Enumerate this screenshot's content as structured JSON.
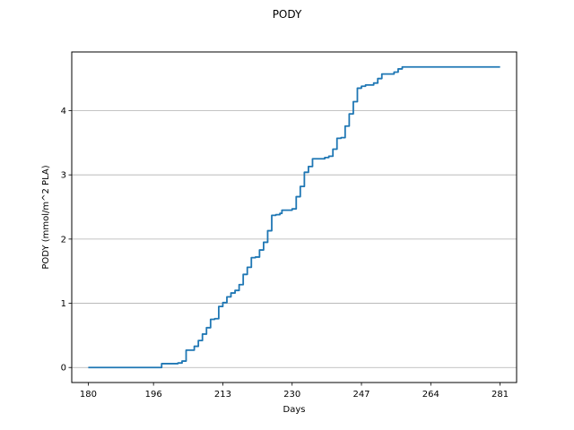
{
  "chart_data": {
    "type": "line",
    "title": "PODY",
    "xlabel": "Days",
    "ylabel": "PODY (mmol/m^2 PLA)",
    "xlim": [
      175.95,
      285.05
    ],
    "ylim": [
      -0.234,
      4.914
    ],
    "x_ticks": [
      180,
      196,
      213,
      230,
      247,
      264,
      281
    ],
    "y_ticks": [
      0,
      1,
      2,
      3,
      4
    ],
    "grid": "horizontal",
    "series": [
      {
        "name": "",
        "color": "#1f77b4",
        "step": true,
        "points": [
          [
            180,
            0.0
          ],
          [
            197,
            0.0
          ],
          [
            198,
            0.06
          ],
          [
            202,
            0.07
          ],
          [
            203,
            0.1
          ],
          [
            204,
            0.27
          ],
          [
            206,
            0.33
          ],
          [
            207,
            0.42
          ],
          [
            208,
            0.52
          ],
          [
            209,
            0.62
          ],
          [
            210,
            0.75
          ],
          [
            211,
            0.76
          ],
          [
            212,
            0.95
          ],
          [
            213,
            1.01
          ],
          [
            214,
            1.1
          ],
          [
            215,
            1.16
          ],
          [
            216,
            1.2
          ],
          [
            217,
            1.29
          ],
          [
            218,
            1.45
          ],
          [
            219,
            1.56
          ],
          [
            220,
            1.71
          ],
          [
            221,
            1.72
          ],
          [
            222,
            1.83
          ],
          [
            223,
            1.95
          ],
          [
            224,
            2.13
          ],
          [
            225,
            2.37
          ],
          [
            226,
            2.38
          ],
          [
            227,
            2.4
          ],
          [
            227.5,
            2.45
          ],
          [
            230,
            2.47
          ],
          [
            231,
            2.66
          ],
          [
            232,
            2.82
          ],
          [
            233,
            3.04
          ],
          [
            234,
            3.13
          ],
          [
            235,
            3.25
          ],
          [
            238,
            3.27
          ],
          [
            239,
            3.29
          ],
          [
            240,
            3.4
          ],
          [
            241,
            3.57
          ],
          [
            242,
            3.58
          ],
          [
            243,
            3.76
          ],
          [
            244,
            3.95
          ],
          [
            245,
            4.14
          ],
          [
            246,
            4.35
          ],
          [
            247,
            4.38
          ],
          [
            248,
            4.4
          ],
          [
            250,
            4.43
          ],
          [
            251,
            4.5
          ],
          [
            252,
            4.57
          ],
          [
            255,
            4.6
          ],
          [
            256,
            4.65
          ],
          [
            257,
            4.68
          ],
          [
            281,
            4.68
          ]
        ]
      }
    ]
  }
}
